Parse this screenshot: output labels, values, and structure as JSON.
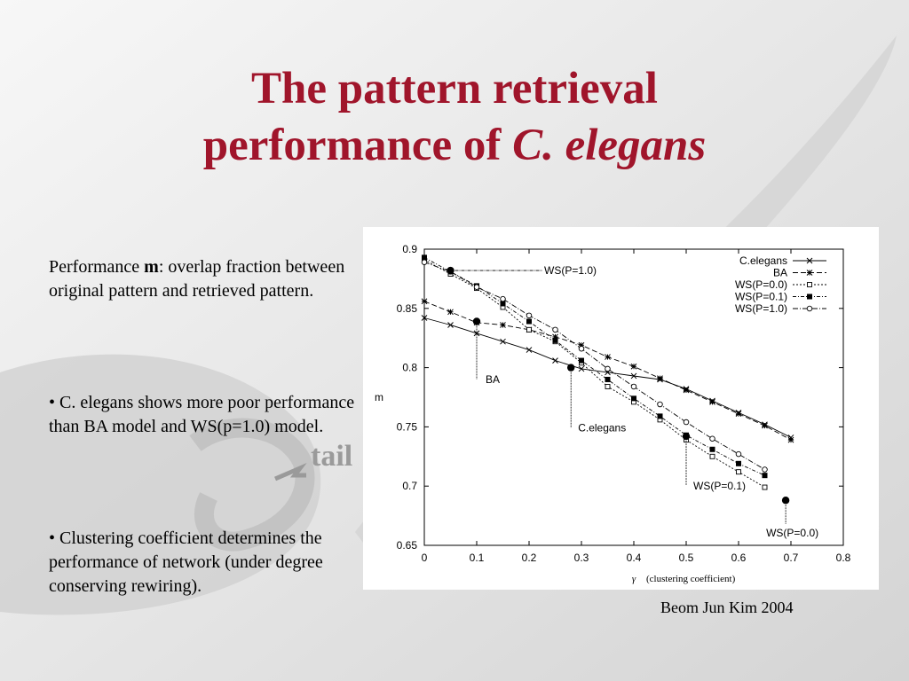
{
  "slide": {
    "title_line1": "The pattern retrieval",
    "title_line2_prefix": "performance of ",
    "title_line2_italic": "C. elegans",
    "bg_word": "tail",
    "p1_prefix": "Performance ",
    "p1_bold": "m",
    "p1_rest": ": overlap fraction between original pattern and retrieved pattern.",
    "p2": "• C. elegans shows more poor performance than BA model and WS(p=1.0) model.",
    "p3": "• Clustering coefficient determines the performance of network (under degree conserving rewiring).",
    "credit": "Beom Jun Kim 2004",
    "colors": {
      "title": "#a0152b",
      "background": "#ececec"
    }
  },
  "chart_data": {
    "type": "line",
    "title": "",
    "xlabel_symbol": "γ",
    "xlabel": "(clustering coefficient)",
    "ylabel": "m",
    "xlim": [
      0,
      0.8
    ],
    "ylim": [
      0.65,
      0.9
    ],
    "xticks": [
      0,
      0.1,
      0.2,
      0.3,
      0.4,
      0.5,
      0.6,
      0.7,
      0.8
    ],
    "yticks": [
      0.65,
      0.7,
      0.75,
      0.8,
      0.85,
      0.9
    ],
    "xtick_labels": [
      "0",
      "0.1",
      "0.2",
      "0.3",
      "0.4",
      "0.5",
      "0.6",
      "0.7",
      "0.8"
    ],
    "ytick_labels": [
      "0.65",
      "0.7",
      "0.75",
      "0.8",
      "0.85",
      "0.9"
    ],
    "legend_position": "top-right",
    "series": [
      {
        "name": "C.elegans",
        "marker": "x",
        "dash": "",
        "x": [
          0,
          0.05,
          0.1,
          0.15,
          0.2,
          0.25,
          0.3,
          0.35,
          0.4,
          0.45,
          0.5,
          0.55,
          0.6,
          0.65,
          0.7
        ],
        "y": [
          0.842,
          0.836,
          0.829,
          0.822,
          0.815,
          0.806,
          0.799,
          0.796,
          0.793,
          0.79,
          0.782,
          0.772,
          0.762,
          0.752,
          0.741
        ]
      },
      {
        "name": "BA",
        "marker": "star",
        "dash": "6,3",
        "x": [
          0,
          0.05,
          0.1,
          0.15,
          0.2,
          0.25,
          0.3,
          0.35,
          0.4,
          0.45,
          0.5,
          0.55,
          0.6,
          0.65,
          0.7
        ],
        "y": [
          0.856,
          0.847,
          0.838,
          0.836,
          0.832,
          0.826,
          0.819,
          0.809,
          0.801,
          0.791,
          0.781,
          0.771,
          0.761,
          0.751,
          0.739
        ]
      },
      {
        "name": "WS(P=0.0)",
        "marker": "square-open",
        "dash": "2,2",
        "x": [
          0,
          0.05,
          0.1,
          0.15,
          0.2,
          0.25,
          0.3,
          0.35,
          0.4,
          0.45,
          0.5,
          0.55,
          0.6,
          0.65
        ],
        "y": [
          0.891,
          0.879,
          0.867,
          0.851,
          0.832,
          0.822,
          0.804,
          0.784,
          0.771,
          0.756,
          0.739,
          0.725,
          0.712,
          0.699
        ]
      },
      {
        "name": "WS(P=0.1)",
        "marker": "square-filled",
        "dash": "4,2,1,2",
        "x": [
          0,
          0.05,
          0.1,
          0.15,
          0.2,
          0.25,
          0.3,
          0.35,
          0.4,
          0.45,
          0.5,
          0.55,
          0.6,
          0.65
        ],
        "y": [
          0.893,
          0.881,
          0.869,
          0.854,
          0.839,
          0.823,
          0.806,
          0.79,
          0.774,
          0.759,
          0.743,
          0.731,
          0.719,
          0.709
        ]
      },
      {
        "name": "WS(P=1.0)",
        "marker": "circle-open",
        "dash": "6,2,1,2",
        "x": [
          0,
          0.05,
          0.1,
          0.15,
          0.2,
          0.25,
          0.3,
          0.35,
          0.4,
          0.45,
          0.5,
          0.55,
          0.6,
          0.65
        ],
        "y": [
          0.889,
          0.881,
          0.868,
          0.858,
          0.844,
          0.832,
          0.816,
          0.799,
          0.784,
          0.769,
          0.754,
          0.74,
          0.727,
          0.714
        ]
      }
    ],
    "highlight_points": [
      {
        "x": 0.05,
        "y": 0.882
      },
      {
        "x": 0.1,
        "y": 0.839
      },
      {
        "x": 0.28,
        "y": 0.8
      },
      {
        "x": 0.5,
        "y": 0.742
      },
      {
        "x": 0.69,
        "y": 0.688
      }
    ],
    "annotations": [
      {
        "text": "WS(P=1.0)",
        "px": 0.05,
        "py": 0.882
      },
      {
        "text": "BA",
        "px": 0.1,
        "py": 0.839
      },
      {
        "text": "C.elegans",
        "px": 0.28,
        "py": 0.8
      },
      {
        "text": "WS(P=0.1)",
        "px": 0.5,
        "py": 0.742
      },
      {
        "text": "WS(P=0.0)",
        "px": 0.69,
        "py": 0.688
      }
    ]
  }
}
